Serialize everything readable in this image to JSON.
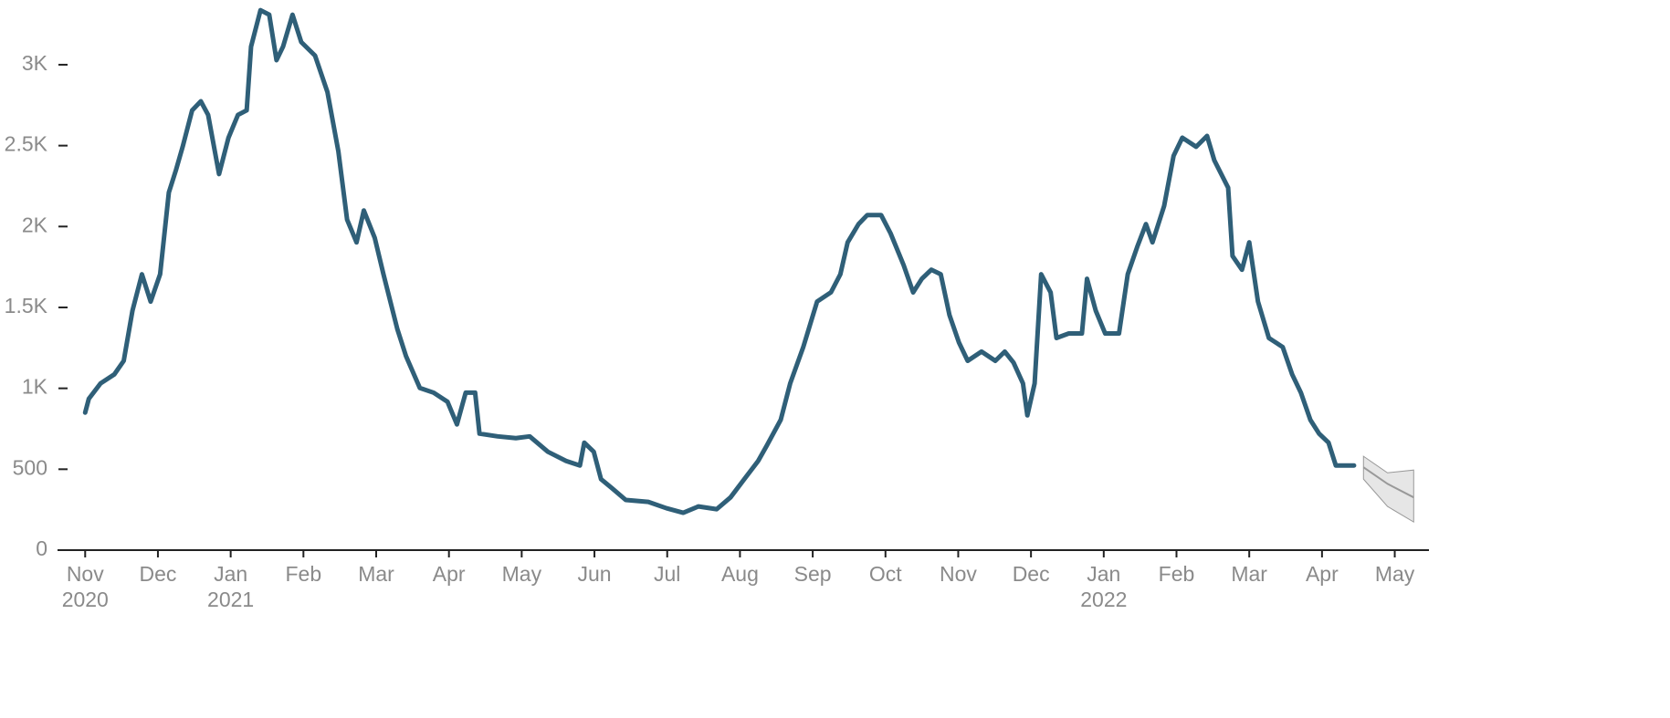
{
  "chart_data": {
    "type": "line",
    "xlim": [
      -0.38,
      18.47
    ],
    "ylim": [
      0,
      3400
    ],
    "xticks": [
      {
        "value": 0,
        "label": "Nov"
      },
      {
        "value": 1,
        "label": "Dec"
      },
      {
        "value": 2,
        "label": "Jan"
      },
      {
        "value": 3,
        "label": "Feb"
      },
      {
        "value": 4,
        "label": "Mar"
      },
      {
        "value": 5,
        "label": "Apr"
      },
      {
        "value": 6,
        "label": "May"
      },
      {
        "value": 7,
        "label": "Jun"
      },
      {
        "value": 8,
        "label": "Jul"
      },
      {
        "value": 9,
        "label": "Aug"
      },
      {
        "value": 10,
        "label": "Sep"
      },
      {
        "value": 11,
        "label": "Oct"
      },
      {
        "value": 12,
        "label": "Nov"
      },
      {
        "value": 13,
        "label": "Dec"
      },
      {
        "value": 14,
        "label": "Jan"
      },
      {
        "value": 15,
        "label": "Feb"
      },
      {
        "value": 16,
        "label": "Mar"
      },
      {
        "value": 17,
        "label": "Apr"
      },
      {
        "value": 18,
        "label": "May"
      }
    ],
    "year_labels": [
      {
        "value": 0,
        "label": "2020"
      },
      {
        "value": 2,
        "label": "2021"
      },
      {
        "value": 14,
        "label": "2022"
      }
    ],
    "yticks": [
      0,
      500,
      {
        "value": 1000,
        "label": "1K"
      },
      {
        "value": 1500,
        "label": "1.5K"
      },
      {
        "value": 2000,
        "label": "2K"
      },
      {
        "value": 2500,
        "label": "2.5K"
      },
      {
        "value": 3000,
        "label": "3K"
      }
    ],
    "series": [
      {
        "color": "#2f5f78",
        "x": [
          0,
          0.05,
          0.21,
          0.4,
          0.53,
          0.65,
          0.78,
          0.9,
          1.03,
          1.15,
          1.25,
          1.34,
          1.47,
          1.59,
          1.69,
          1.84,
          1.97,
          2.1,
          2.22,
          2.28,
          2.41,
          2.53,
          2.63,
          2.72,
          2.85,
          2.97,
          3.16,
          3.33,
          3.48,
          3.6,
          3.73,
          3.83,
          3.98,
          4.1,
          4.29,
          4.41,
          4.6,
          4.79,
          4.98,
          5.11,
          5.23,
          5.36,
          5.42,
          5.67,
          5.92,
          6.11,
          6.36,
          6.61,
          6.8,
          6.86,
          6.99,
          7.09,
          7.24,
          7.43,
          7.74,
          7.99,
          8.22,
          8.43,
          8.68,
          8.87,
          9.06,
          9.25,
          9.37,
          9.56,
          9.69,
          9.87,
          10.06,
          10.25,
          10.38,
          10.48,
          10.63,
          10.75,
          10.94,
          11.07,
          11.25,
          11.38,
          11.5,
          11.63,
          11.76,
          11.88,
          12.01,
          12.13,
          12.32,
          12.51,
          12.64,
          12.76,
          12.89,
          12.95,
          13.05,
          13.14,
          13.27,
          13.35,
          13.52,
          13.7,
          13.77,
          13.89,
          14.02,
          14.21,
          14.33,
          14.46,
          14.58,
          14.67,
          14.83,
          14.96,
          15.08,
          15.27,
          15.42,
          15.52,
          15.71,
          15.77,
          15.9,
          16,
          16.12,
          16.27,
          16.46,
          16.59,
          16.71,
          16.84,
          16.96,
          17.09,
          17.19,
          17.34,
          17.44
        ],
        "values": [
          850,
          935,
          1030,
          1086,
          1170,
          1480,
          1705,
          1536,
          1705,
          2210,
          2352,
          2493,
          2718,
          2774,
          2690,
          2324,
          2549,
          2690,
          2718,
          3112,
          3337,
          3309,
          3028,
          3112,
          3309,
          3140,
          3056,
          2831,
          2465,
          2043,
          1902,
          2099,
          1930,
          1705,
          1367,
          1199,
          1002,
          973,
          917,
          777,
          973,
          973,
          720,
          703,
          692,
          703,
          608,
          551,
          523,
          664,
          608,
          439,
          383,
          310,
          298,
          259,
          231,
          270,
          253,
          326,
          439,
          551,
          647,
          805,
          1030,
          1255,
          1536,
          1593,
          1705,
          1902,
          2015,
          2071,
          2071,
          1958,
          1761,
          1593,
          1677,
          1733,
          1705,
          1452,
          1283,
          1170,
          1227,
          1170,
          1227,
          1159,
          1030,
          833,
          1030,
          1705,
          1593,
          1311,
          1339,
          1339,
          1677,
          1480,
          1339,
          1339,
          1705,
          1874,
          2015,
          1902,
          2127,
          2437,
          2549,
          2493,
          2560,
          2409,
          2240,
          1818,
          1733,
          1902,
          1536,
          1311,
          1255,
          1086,
          973,
          805,
          720,
          664,
          523,
          523,
          523
        ]
      }
    ],
    "forecast": {
      "color": "#999999",
      "band_color": "#e6e6e6",
      "x": [
        17.57,
        17.9,
        18.26
      ],
      "values": [
        512,
        410,
        326
      ],
      "lower": [
        439,
        270,
        174
      ],
      "upper": [
        580,
        478,
        495
      ]
    }
  }
}
